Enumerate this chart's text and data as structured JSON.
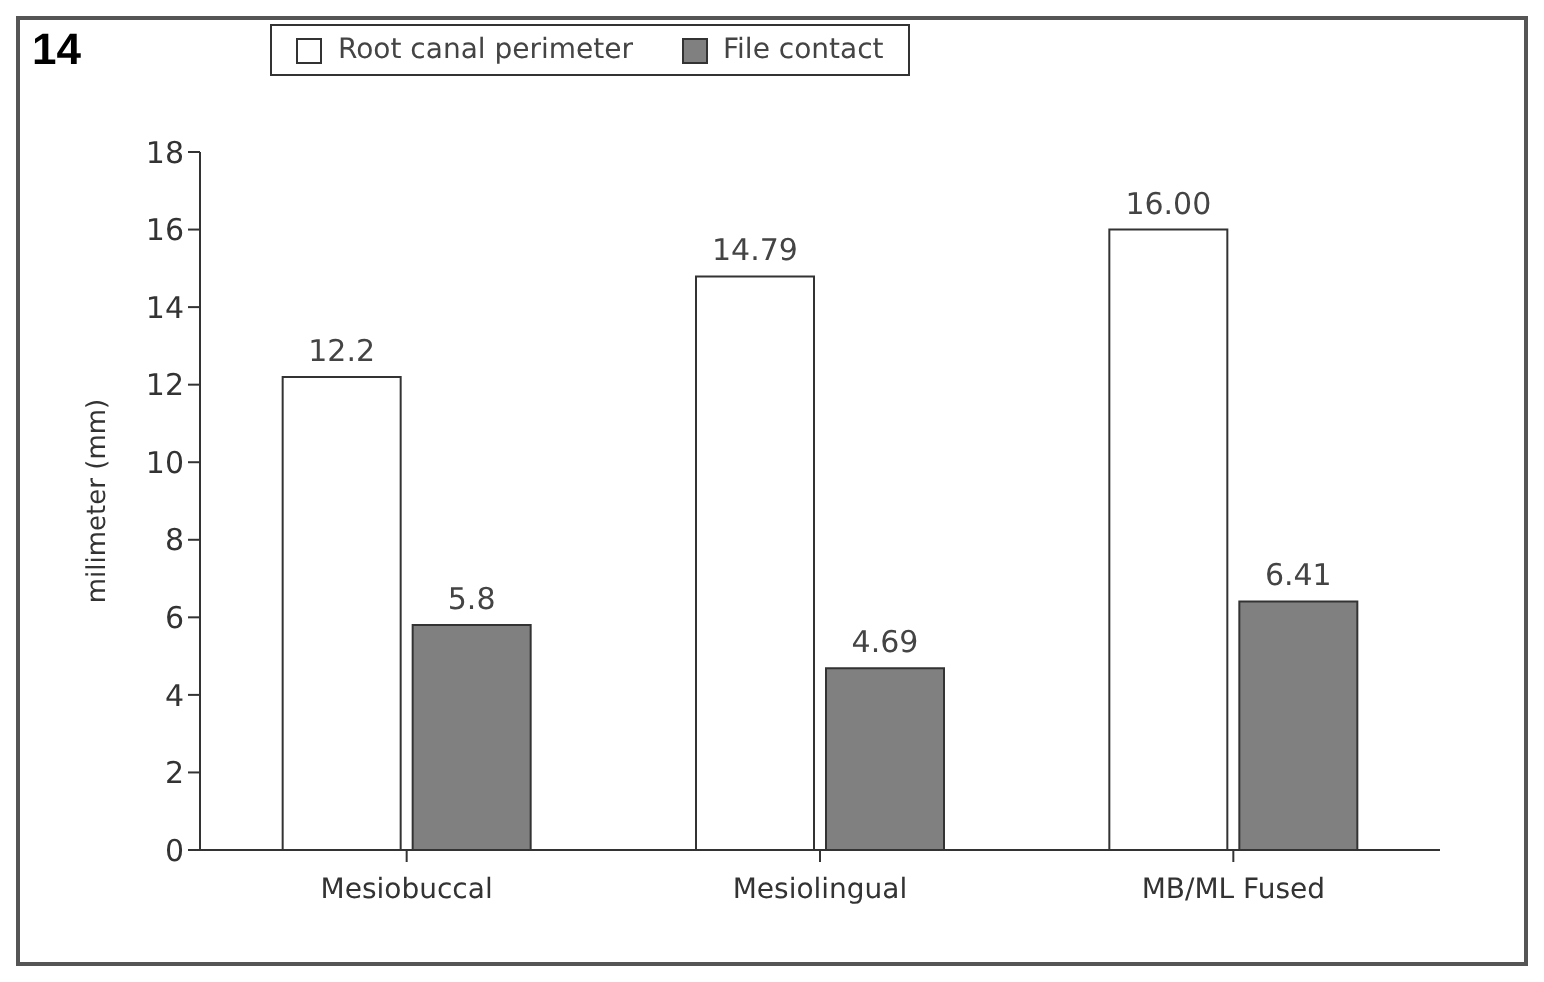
{
  "chart_data": {
    "type": "bar",
    "title": "14",
    "ylabel": "milimeter (mm)",
    "categories": [
      "Mesiobuccal",
      "Mesiolingual",
      "MB/ML Fused"
    ],
    "series": [
      {
        "name": "Root canal perimeter",
        "color": "#ffffff",
        "values": [
          12.2,
          14.79,
          16.0
        ],
        "value_labels": [
          "12.2",
          "14.79",
          "16.00"
        ]
      },
      {
        "name": "File contact",
        "color": "#808080",
        "values": [
          5.8,
          4.69,
          6.41
        ],
        "value_labels": [
          "5.8",
          "4.69",
          "6.41"
        ]
      }
    ],
    "ylim": [
      0,
      18
    ],
    "yticks": [
      0,
      2,
      4,
      6,
      8,
      10,
      12,
      14,
      16,
      18
    ],
    "grid": false,
    "legend": "top left"
  }
}
